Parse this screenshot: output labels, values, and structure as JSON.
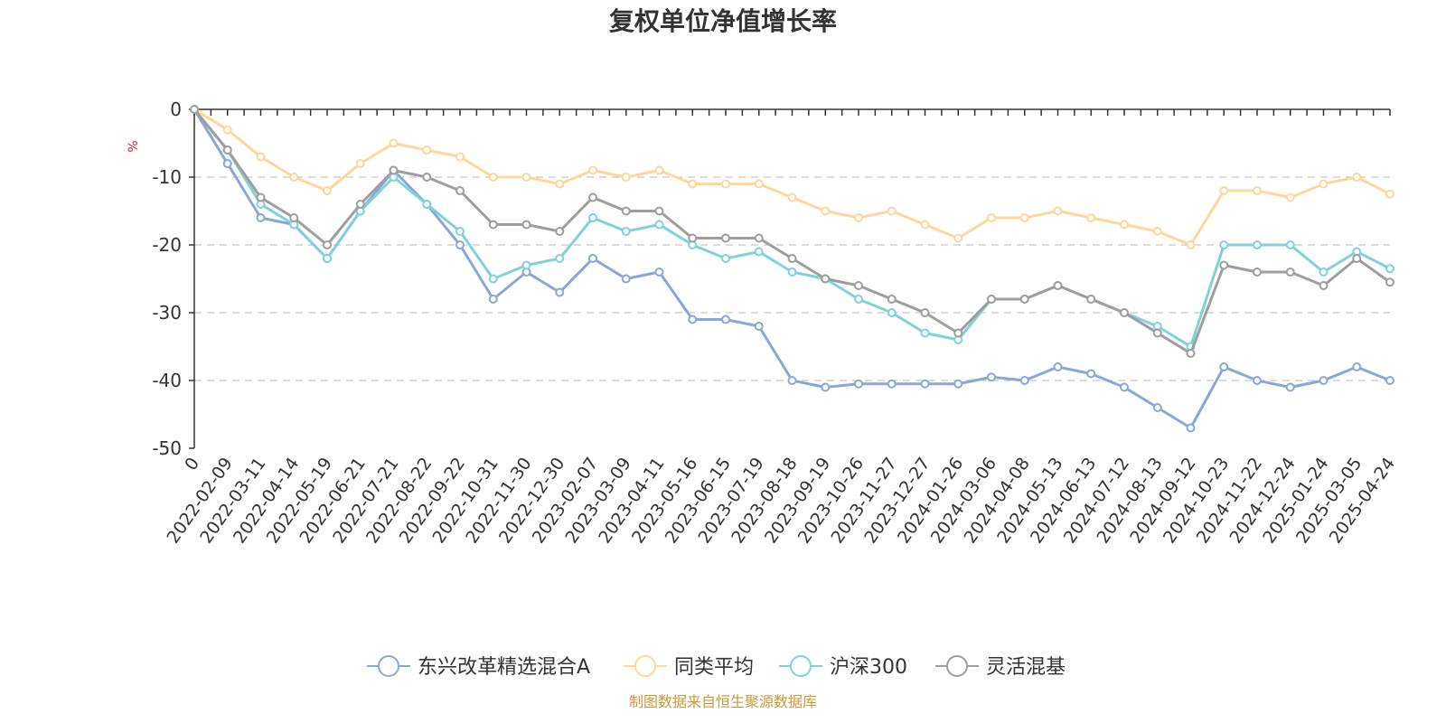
{
  "chart_data": {
    "type": "line",
    "title": "复权单位净值增长率",
    "ylabel": "%",
    "ylim": [
      -50,
      0
    ],
    "yticks": [
      0,
      -10,
      -20,
      -30,
      -40,
      -50
    ],
    "grid": true,
    "legend_position": "bottom",
    "x_tick_labels": [
      "0",
      "2022-02-09",
      "2022-03-11",
      "2022-04-14",
      "2022-05-19",
      "2022-06-21",
      "2022-07-21",
      "2022-08-22",
      "2022-09-22",
      "2022-10-31",
      "2022-11-30",
      "2022-12-30",
      "2023-02-07",
      "2023-03-09",
      "2023-04-11",
      "2023-05-16",
      "2023-06-15",
      "2023-07-19",
      "2023-08-18",
      "2023-09-19",
      "2023-10-26",
      "2023-11-27",
      "2023-12-27",
      "2024-01-26",
      "2024-03-06",
      "2024-04-08",
      "2024-05-13",
      "2024-06-13",
      "2024-07-12",
      "2024-08-13",
      "2024-09-12",
      "2024-10-23",
      "2024-11-22",
      "2024-12-24",
      "2025-01-24",
      "2025-03-05",
      "2025-04-24"
    ],
    "series": [
      {
        "name": "东兴改革精选混合A",
        "color": "#8aa7d6",
        "values": [
          0,
          -8,
          -16,
          -17,
          -22,
          -15,
          -9,
          -14,
          -20,
          -28,
          -24,
          -27,
          -22,
          -25,
          -24,
          -31,
          -31,
          -32,
          -40,
          -41,
          -40.5,
          -40.5,
          -40.5,
          -40.5,
          -39.5,
          -40,
          -38,
          -39,
          -41,
          -44,
          -47,
          -38,
          -40,
          -41,
          -40,
          -38,
          -40
        ]
      },
      {
        "name": "同类平均",
        "color": "#fdd79b",
        "values": [
          0,
          -3,
          -7,
          -10,
          -12,
          -8,
          -5,
          -6,
          -7,
          -10,
          -10,
          -11,
          -9,
          -10,
          -9,
          -11,
          -11,
          -11,
          -13,
          -15,
          -16,
          -15,
          -17,
          -19,
          -16,
          -16,
          -15,
          -16,
          -17,
          -18,
          -20,
          -12,
          -12,
          -13,
          -11,
          -10,
          -12.5
        ]
      },
      {
        "name": "沪深300",
        "color": "#7fd3d8",
        "values": [
          0,
          -6,
          -14,
          -17,
          -22,
          -15,
          -10,
          -14,
          -18,
          -25,
          -23,
          -22,
          -16,
          -18,
          -17,
          -20,
          -22,
          -21,
          -24,
          -25,
          -28,
          -30,
          -33,
          -34,
          -28,
          -28,
          -26,
          -28,
          -30,
          -32,
          -35,
          -20,
          -20,
          -20,
          -24,
          -21,
          -23.5
        ]
      },
      {
        "name": "灵活混基",
        "color": "#9e9e9e",
        "values": [
          0,
          -6,
          -13,
          -16,
          -20,
          -14,
          -9,
          -10,
          -12,
          -17,
          -17,
          -18,
          -13,
          -15,
          -15,
          -19,
          -19,
          -19,
          -22,
          -25,
          -26,
          -28,
          -30,
          -33,
          -28,
          -28,
          -26,
          -28,
          -30,
          -33,
          -36,
          -23,
          -24,
          -24,
          -26,
          -22,
          -25.5
        ]
      }
    ]
  },
  "source_note": "制图数据来自恒生聚源数据库"
}
